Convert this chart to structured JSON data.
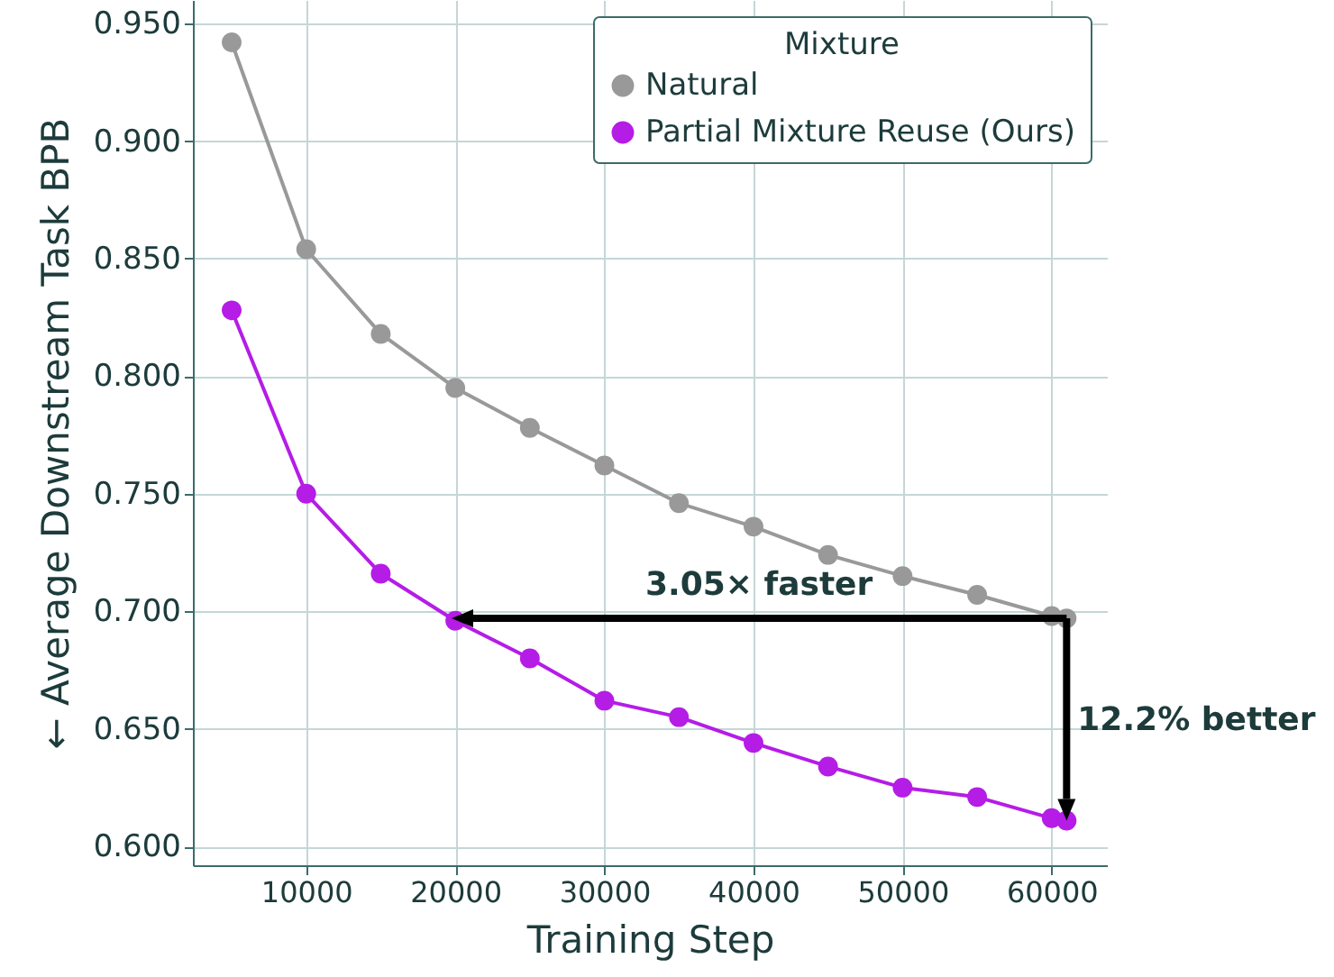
{
  "chart_data": {
    "type": "line",
    "xlabel": "Training Step",
    "ylabel": "← Average Downstream Task BPB",
    "legend_title": "Mixture",
    "x": [
      5000,
      10000,
      15000,
      20000,
      25000,
      30000,
      35000,
      40000,
      45000,
      50000,
      55000,
      60000,
      61000
    ],
    "series": [
      {
        "name": "Natural",
        "color": "#999999",
        "values": [
          0.942,
          0.854,
          0.818,
          0.795,
          0.778,
          0.762,
          0.746,
          0.736,
          0.724,
          0.715,
          0.707,
          0.698,
          0.697
        ]
      },
      {
        "name": "Partial Mixture Reuse (Ours)",
        "color": "#b51ce6",
        "values": [
          0.828,
          0.75,
          0.716,
          0.696,
          0.68,
          0.662,
          0.655,
          0.644,
          0.634,
          0.625,
          0.621,
          0.612,
          0.611
        ]
      }
    ],
    "xlim": [
      2400,
      63700
    ],
    "xticks": [
      10000,
      20000,
      30000,
      40000,
      50000,
      60000
    ],
    "ylim": [
      0.592,
      0.96
    ],
    "yticks": [
      {
        "value": 0.6,
        "label": "0.600"
      },
      {
        "value": 0.65,
        "label": "0.650"
      },
      {
        "value": 0.7,
        "label": "0.700"
      },
      {
        "value": 0.75,
        "label": "0.750"
      },
      {
        "value": 0.8,
        "label": "0.800"
      },
      {
        "value": 0.85,
        "label": "0.850"
      },
      {
        "value": 0.9,
        "label": "0.900"
      },
      {
        "value": 0.95,
        "label": "0.950"
      }
    ],
    "annotations": [
      "3.05× faster",
      "12.2% better"
    ],
    "grid": true,
    "legend": "top right",
    "marker": "circle",
    "line_style": "solid"
  }
}
